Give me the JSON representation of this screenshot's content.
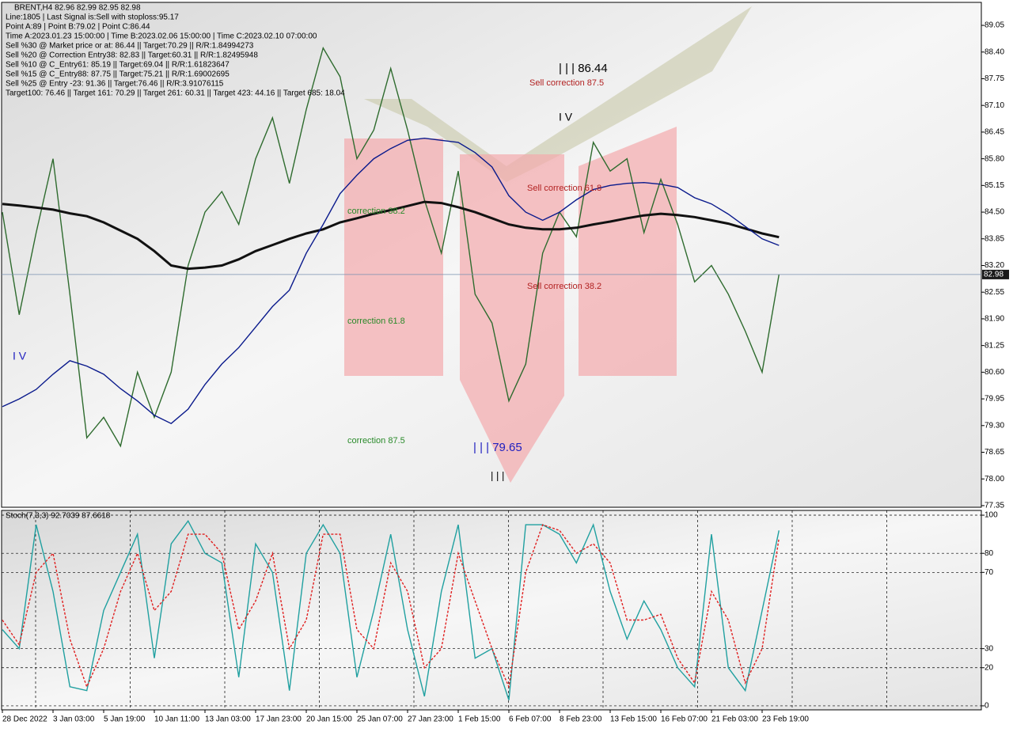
{
  "chart_data": [
    {
      "type": "line",
      "title": "BRENT,H4  82.96 82.99 82.95 82.98",
      "info_lines": [
        "Line:1805 | Last Signal is:Sell with stoploss:95.17",
        "Point A:89 | Point B:79.02 | Point C:86.44",
        "Time A:2023.01.23 15:00:00 | Time B:2023.02.06 15:00:00 | Time C:2023.02.10 07:00:00",
        "Sell %30 @ Market price or at: 86.44 || Target:70.29 || R/R:1.84994273",
        "Sell %20 @ Correction Entry38: 82.83 || Target:60.31 || R/R:1.82495948",
        "Sell %10 @ C_Entry61: 85.19 || Target:69.04 || R/R:1.61823647",
        "Sell %15 @ C_Entry88: 87.75 || Target:75.21 || R/R:1.69002695",
        "Sell %25 @ Entry -23: 91.36 || Target:76.46 || R/R:3.91076115",
        "Target100: 76.46 || Target 161: 70.29 || Target 261: 60.31 || Target 423: 44.16 || Target 685: 18.04"
      ],
      "annotations": [
        "| | | 86.44",
        "Sell correction 87.5",
        "I V",
        "Sell correction 61.8",
        "correction 38.2",
        "correction 61.8",
        "Sell correction 38.2",
        "correction 87.5",
        "| | | 79.65",
        "| | |",
        "I V"
      ],
      "last_price": 82.98,
      "ylim": [
        77.31,
        89.61
      ],
      "yticks": [
        77.35,
        {
          "value": 78.0,
          "label": "78.00"
        },
        78.65,
        {
          "value": 79.3,
          "label": "79.30"
        },
        79.95,
        {
          "value": 80.6,
          "label": "80.60"
        },
        81.25,
        {
          "value": 81.9,
          "label": "81.90"
        },
        82.55,
        {
          "value": 83.2,
          "label": "83.20"
        },
        83.85,
        {
          "value": 84.5,
          "label": "84.50"
        },
        85.15,
        {
          "value": 85.8,
          "label": "85.80"
        },
        86.45,
        {
          "value": 87.1,
          "label": "87.10"
        },
        87.75,
        {
          "value": 88.4,
          "label": "88.40"
        },
        89.05
      ],
      "series": [
        {
          "color": "#2e6b2e",
          "values": [
            84.5,
            82.0,
            84.0,
            85.8,
            82.5,
            79.0,
            79.5,
            78.8,
            80.6,
            79.5,
            80.6,
            83.2,
            84.5,
            85.0,
            84.2,
            85.8,
            86.8,
            85.2,
            87.0,
            88.5,
            87.8,
            85.8,
            86.5,
            88.0,
            86.5,
            84.8,
            83.5,
            85.5,
            82.5,
            81.8,
            79.9,
            80.8,
            83.5,
            84.5,
            83.9,
            86.2,
            85.5,
            85.8,
            84.0,
            85.3,
            84.2,
            82.8,
            83.2,
            82.5,
            81.6,
            80.6,
            82.98
          ]
        },
        {
          "color": "#111111",
          "values": [
            84.7,
            84.66,
            84.61,
            84.56,
            84.47,
            84.4,
            84.25,
            84.05,
            83.85,
            83.55,
            83.2,
            83.12,
            83.15,
            83.2,
            83.35,
            83.55,
            83.7,
            83.85,
            83.98,
            84.08,
            84.25,
            84.35,
            84.46,
            84.55,
            84.65,
            84.75,
            84.72,
            84.62,
            84.5,
            84.35,
            84.2,
            84.12,
            84.08,
            84.08,
            84.12,
            84.2,
            84.27,
            84.35,
            84.42,
            84.46,
            84.43,
            84.38,
            84.3,
            84.22,
            84.1,
            83.98,
            83.89
          ]
        },
        {
          "color": "#0a1a8c",
          "values": [
            79.76,
            79.95,
            80.18,
            80.55,
            80.88,
            80.75,
            80.55,
            80.2,
            79.9,
            79.55,
            79.35,
            79.7,
            80.3,
            80.8,
            81.2,
            81.7,
            82.2,
            82.6,
            83.5,
            84.2,
            84.95,
            85.4,
            85.8,
            86.05,
            86.25,
            86.3,
            86.25,
            86.2,
            85.95,
            85.6,
            84.9,
            84.5,
            84.3,
            84.5,
            84.8,
            85.05,
            85.15,
            85.2,
            85.22,
            85.18,
            85.1,
            84.85,
            84.7,
            84.45,
            84.15,
            83.85,
            83.69
          ]
        }
      ]
    },
    {
      "type": "line",
      "title": "Stoch(7,3,3) 92.7039 87.6618",
      "categories": [
        "28 Dec 2022",
        null,
        null,
        "3 Jan 03:00",
        null,
        null,
        "5 Jan 19:00",
        null,
        null,
        "10 Jan 11:00",
        null,
        null,
        "13 Jan 03:00",
        null,
        null,
        "17 Jan 23:00",
        null,
        null,
        "20 Jan 15:00",
        null,
        null,
        "25 Jan 07:00",
        null,
        null,
        "27 Jan 23:00",
        null,
        null,
        "1 Feb 15:00",
        null,
        null,
        "6 Feb 07:00",
        null,
        null,
        "8 Feb 23:00",
        null,
        null,
        "13 Feb 15:00",
        null,
        null,
        "16 Feb 07:00",
        null,
        null,
        "21 Feb 03:00",
        null,
        null,
        "23 Feb 19:00",
        null
      ],
      "ylim": [
        -2.1,
        102.5
      ],
      "yticks": [
        0,
        20,
        30,
        70,
        80,
        100
      ],
      "series": [
        {
          "color": "#20a0a0",
          "values": [
            40,
            30,
            95,
            60,
            10,
            8,
            50,
            70,
            90,
            25,
            85,
            97,
            80,
            75,
            15,
            85,
            70,
            8,
            80,
            95,
            80,
            15,
            50,
            90,
            40,
            5,
            60,
            95,
            25,
            30,
            3,
            95,
            95,
            90,
            75,
            95,
            60,
            35,
            55,
            40,
            20,
            10,
            90,
            20,
            8,
            50,
            92
          ]
        },
        {
          "color": "#e02020",
          "dashed": true,
          "values": [
            45,
            32,
            70,
            80,
            35,
            10,
            30,
            60,
            80,
            50,
            60,
            90,
            90,
            80,
            40,
            55,
            80,
            30,
            45,
            90,
            90,
            40,
            30,
            75,
            60,
            20,
            30,
            80,
            55,
            30,
            10,
            70,
            95,
            92,
            80,
            85,
            75,
            45,
            45,
            48,
            25,
            12,
            60,
            45,
            12,
            30,
            88
          ]
        }
      ]
    }
  ]
}
